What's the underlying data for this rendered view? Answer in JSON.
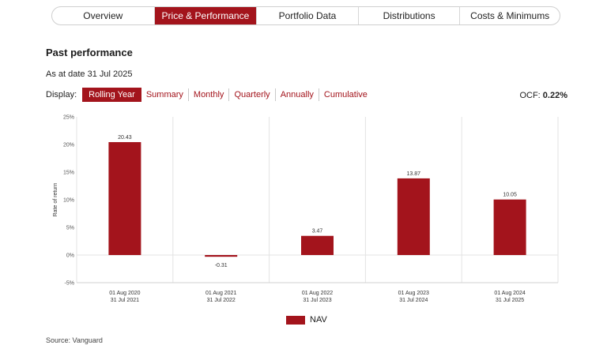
{
  "tabs": [
    {
      "label": "Overview",
      "active": false
    },
    {
      "label": "Price & Performance",
      "active": true
    },
    {
      "label": "Portfolio Data",
      "active": false
    },
    {
      "label": "Distributions",
      "active": false
    },
    {
      "label": "Costs & Minimums",
      "active": false
    }
  ],
  "section": {
    "title": "Past performance",
    "as_at": "As at date 31 Jul 2025",
    "display_label": "Display:",
    "display_options": [
      "Rolling Year",
      "Summary",
      "Monthly",
      "Quarterly",
      "Annually",
      "Cumulative"
    ],
    "display_selected": "Rolling Year",
    "ocf_label": "OCF:",
    "ocf_value": "0.22%"
  },
  "chart_data": {
    "type": "bar",
    "categories": [
      [
        "01 Aug 2020",
        "31 Jul 2021"
      ],
      [
        "01 Aug 2021",
        "31 Jul 2022"
      ],
      [
        "01 Aug 2022",
        "31 Jul 2023"
      ],
      [
        "01 Aug 2023",
        "31 Jul 2024"
      ],
      [
        "01 Aug 2024",
        "31 Jul 2025"
      ]
    ],
    "series": [
      {
        "name": "NAV",
        "values": [
          20.43,
          -0.31,
          3.47,
          13.87,
          10.05
        ]
      }
    ],
    "data_labels": [
      "20.43",
      "-0.31",
      "3.47",
      "13.87",
      "10.05"
    ],
    "ylabel": "Rate of return",
    "y_ticks": [
      "25%",
      "20%",
      "15%",
      "10%",
      "5%",
      "0%",
      "-5%"
    ],
    "y_tick_values": [
      25,
      20,
      15,
      10,
      5,
      0,
      -5
    ],
    "ylim": [
      -5,
      25
    ],
    "grid": "vertical",
    "legend_position": "bottom-center",
    "color": "#a3141c"
  },
  "source": "Source: Vanguard"
}
